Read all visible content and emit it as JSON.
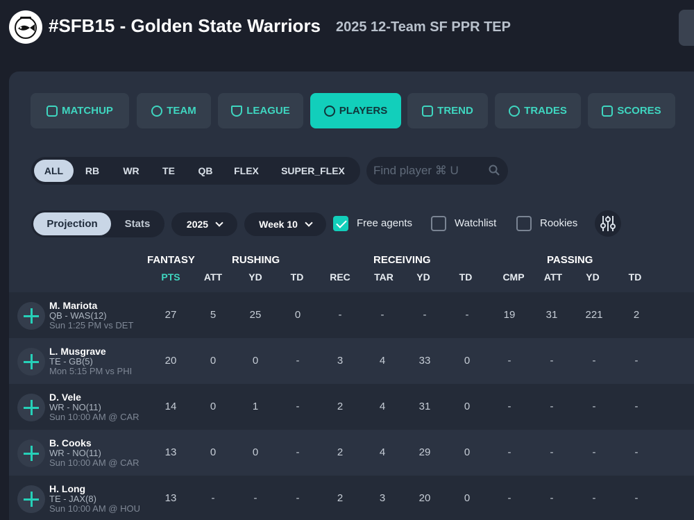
{
  "header": {
    "title": "#SFB15 - Golden State Warriors",
    "subtitle": "2025 12-Team SF PPR TEP"
  },
  "nav": [
    {
      "label": "MATCHUP",
      "icon": "vs-icon",
      "active": false
    },
    {
      "label": "TEAM",
      "icon": "helmet-icon",
      "active": false
    },
    {
      "label": "LEAGUE",
      "icon": "shield-icon",
      "active": false
    },
    {
      "label": "PLAYERS",
      "icon": "players-icon",
      "active": true
    },
    {
      "label": "TREND",
      "icon": "trend-icon",
      "active": false
    },
    {
      "label": "TRADES",
      "icon": "swap-icon",
      "active": false
    },
    {
      "label": "SCORES",
      "icon": "scoreboard-icon",
      "active": false
    }
  ],
  "positions": [
    "ALL",
    "RB",
    "WR",
    "TE",
    "QB",
    "FLEX",
    "SUPER_FLEX"
  ],
  "positions_selected": "ALL",
  "search": {
    "placeholder": "Find player ⌘ U"
  },
  "view_toggle": [
    "Projection",
    "Stats"
  ],
  "view_selected": "Projection",
  "season": "2025",
  "week": "Week 10",
  "filters": [
    {
      "label": "Free agents",
      "checked": true
    },
    {
      "label": "Watchlist",
      "checked": false
    },
    {
      "label": "Rookies",
      "checked": false
    }
  ],
  "table": {
    "groups": [
      "FANTASY",
      "RUSHING",
      "RECEIVING",
      "PASSING"
    ],
    "columns": [
      "PTS",
      "ATT",
      "YD",
      "TD",
      "REC",
      "TAR",
      "YD",
      "TD",
      "CMP",
      "ATT",
      "YD",
      "TD"
    ],
    "rows": [
      {
        "name": "M. Mariota",
        "info": "QB - WAS(12)",
        "game": "Sun 1:25 PM vs DET",
        "values": [
          "27",
          "5",
          "25",
          "0",
          "-",
          "-",
          "-",
          "-",
          "19",
          "31",
          "221",
          "2"
        ]
      },
      {
        "name": "L. Musgrave",
        "info": "TE - GB(5)",
        "game": "Mon 5:15 PM vs PHI",
        "values": [
          "20",
          "0",
          "0",
          "-",
          "3",
          "4",
          "33",
          "0",
          "-",
          "-",
          "-",
          "-"
        ]
      },
      {
        "name": "D. Vele",
        "info": "WR - NO(11)",
        "game": "Sun 10:00 AM @ CAR",
        "values": [
          "14",
          "0",
          "1",
          "-",
          "2",
          "4",
          "31",
          "0",
          "-",
          "-",
          "-",
          "-"
        ]
      },
      {
        "name": "B. Cooks",
        "info": "WR - NO(11)",
        "game": "Sun 10:00 AM @ CAR",
        "values": [
          "13",
          "0",
          "0",
          "-",
          "2",
          "4",
          "29",
          "0",
          "-",
          "-",
          "-",
          "-"
        ]
      },
      {
        "name": "H. Long",
        "info": "TE - JAX(8)",
        "game": "Sun 10:00 AM @ HOU",
        "values": [
          "13",
          "-",
          "-",
          "-",
          "2",
          "3",
          "20",
          "0",
          "-",
          "-",
          "-",
          "-"
        ]
      }
    ]
  },
  "colors": {
    "accent": "#12cfbb",
    "background": "#1b1f2a",
    "panel": "#293140"
  }
}
